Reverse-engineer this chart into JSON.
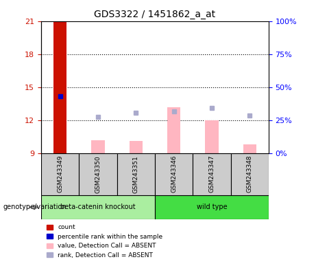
{
  "title": "GDS3322 / 1451862_a_at",
  "samples": [
    "GSM243349",
    "GSM243350",
    "GSM243351",
    "GSM243346",
    "GSM243347",
    "GSM243348"
  ],
  "groups": [
    "beta-catenin knockout",
    "beta-catenin knockout",
    "beta-catenin knockout",
    "wild type",
    "wild type",
    "wild type"
  ],
  "ylim_left": [
    9,
    21
  ],
  "ylim_right": [
    0,
    100
  ],
  "yticks_left": [
    9,
    12,
    15,
    18,
    21
  ],
  "yticks_right": [
    0,
    25,
    50,
    75,
    100
  ],
  "count_bar_value": 21,
  "count_bar_color": "#CC1100",
  "percentile_rank_value": 14.2,
  "percentile_rank_color": "#0000CC",
  "absent_values": {
    "GSM243350": 10.2,
    "GSM243351": 10.1,
    "GSM243346": 13.2,
    "GSM243347": 12.0,
    "GSM243348": 9.8
  },
  "absent_ranks": {
    "GSM243350": 12.3,
    "GSM243351": 12.7,
    "GSM243346": 12.8,
    "GSM243347": 13.1,
    "GSM243348": 12.4
  },
  "absent_value_color": "#FFB6C1",
  "absent_rank_color": "#AAAACC",
  "bar_width": 0.35,
  "legend_labels": [
    "count",
    "percentile rank within the sample",
    "value, Detection Call = ABSENT",
    "rank, Detection Call = ABSENT"
  ],
  "legend_colors": [
    "#CC1100",
    "#0000CC",
    "#FFB6C1",
    "#AAAACC"
  ],
  "genotype_label": "genotype/variation",
  "label_area_color": "#CCCCCC",
  "bkg_knockout_color": "#AAEEA0",
  "bkg_wildtype_color": "#44DD44"
}
